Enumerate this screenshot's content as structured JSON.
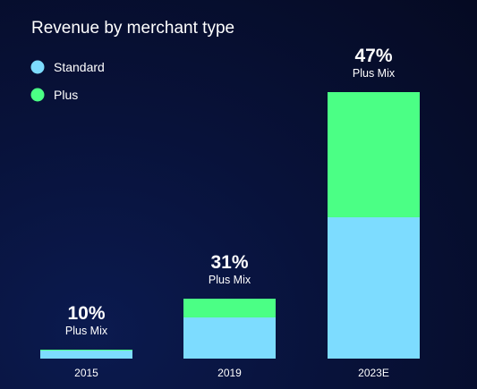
{
  "chart_data": {
    "type": "bar",
    "stacked": true,
    "title": "Revenue by merchant type",
    "categories": [
      "2015",
      "2019",
      "2023E"
    ],
    "series": [
      {
        "name": "Standard",
        "color": "#7ddcff",
        "values": [
          9,
          46,
          158
        ]
      },
      {
        "name": "Plus",
        "color": "#4bff85",
        "values": [
          1,
          21,
          140
        ]
      }
    ],
    "annotations": [
      {
        "value": "10%",
        "label": "Plus Mix"
      },
      {
        "value": "31%",
        "label": "Plus Mix"
      },
      {
        "value": "47%",
        "label": "Plus Mix"
      }
    ],
    "legend": "top-left",
    "ylim": [
      0,
      298
    ],
    "grid": false
  }
}
